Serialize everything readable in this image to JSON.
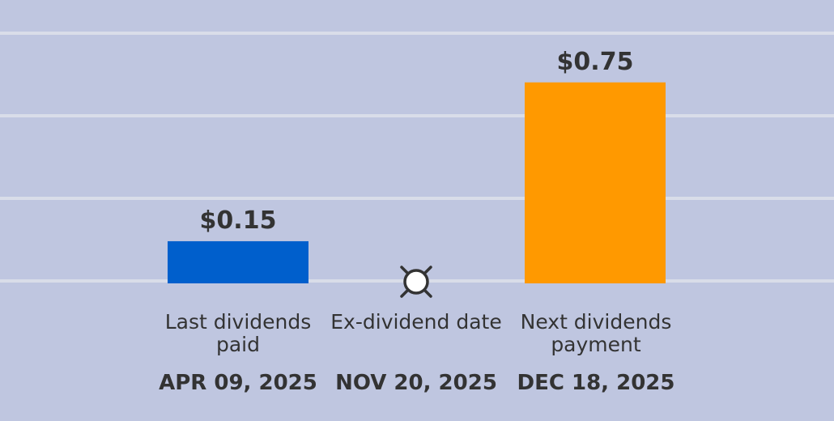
{
  "chart_data": {
    "type": "bar",
    "categories": [
      "Last dividends paid",
      "Ex-dividend date",
      "Next dividends payment"
    ],
    "dates": [
      "APR 09, 2025",
      "NOV 20, 2025",
      "DEC 18, 2025"
    ],
    "values": [
      0.15,
      null,
      0.75
    ],
    "value_labels": [
      "$0.15",
      "",
      "$0.75"
    ],
    "bar_colors": [
      "#005fcc",
      null,
      "#ff9900"
    ],
    "marker": {
      "category": "Ex-dividend date",
      "icon": "ex-dividend-marker-icon"
    },
    "ylim": [
      0,
      0.95
    ],
    "grid": true,
    "colors": {
      "background": "#bfc6e0",
      "gridline": "#d9dde9",
      "text": "#333333",
      "marker_fill": "#ffffff",
      "marker_stroke": "#333333"
    }
  }
}
